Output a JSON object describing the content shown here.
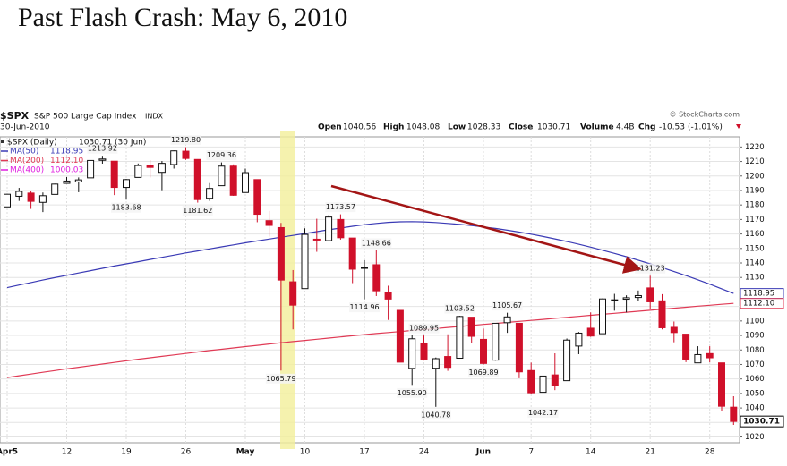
{
  "chart_data": {
    "type": "candlestick",
    "title": "Past Flash Crash: May 6, 2010",
    "symbol": "$SPX",
    "name": "S&P 500 Large Cap Index",
    "exchange": "INDX",
    "date": "30-Jun-2010",
    "source": "© StockCharts.com",
    "labels": {
      "open": "Open",
      "high": "High",
      "low": "Low",
      "close": "Close",
      "volume": "Volume",
      "chg": "Chg"
    },
    "volume": "4.4B",
    "change": -10.53,
    "change_pct": "(-1.01%)",
    "legend_title": "$SPX (Daily)",
    "legend_date": "(30 Jun)",
    "categories": [
      "Apr5",
      null,
      null,
      null,
      null,
      "12",
      null,
      null,
      null,
      null,
      "19",
      null,
      null,
      null,
      null,
      "26",
      null,
      null,
      null,
      null,
      "May",
      null,
      null,
      null,
      null,
      "10",
      null,
      null,
      null,
      null,
      "17",
      null,
      null,
      null,
      null,
      "24",
      null,
      null,
      null,
      null,
      "Jun",
      null,
      null,
      null,
      "7",
      null,
      null,
      null,
      null,
      "14",
      null,
      null,
      null,
      null,
      "21",
      null,
      null,
      null,
      null,
      "28",
      null,
      null
    ],
    "open": [
      1178.7,
      1186.0,
      1188.2,
      1181.8,
      1187.3,
      1194.9,
      1195.9,
      1198.7,
      1210.8,
      1210.2,
      1192.1,
      1199.0,
      1207.2,
      1202.5,
      1207.9,
      1217.1,
      1211.4,
      1184.6,
      1193.3,
      1206.8,
      1188.6,
      1197.5,
      1169.2,
      1164.4,
      1127.0,
      1122.3,
      1156.4,
      1155.4,
      1170.0,
      1157.2,
      1136.5,
      1138.8,
      1119.6,
      1107.3,
      1067.3,
      1084.8,
      1067.4,
      1075.5,
      1074.3,
      1102.6,
      1087.3,
      1073.0,
      1098.8,
      1098.4,
      1065.8,
      1050.8,
      1062.8,
      1058.8,
      1082.7,
      1095.0,
      1091.2,
      1114.0,
      1115.0,
      1116.2,
      1122.8,
      1113.9,
      1095.6,
      1090.9,
      1071.1,
      1077.5,
      1071.1,
      1040.56
    ],
    "high": [
      1187.7,
      1191.8,
      1189.6,
      1188.6,
      1194.7,
      1199.2,
      1199.0,
      1210.7,
      1213.92,
      1210.2,
      1197.9,
      1208.6,
      1210.99,
      1210.3,
      1217.6,
      1219.8,
      1211.6,
      1195.1,
      1209.36,
      1207.99,
      1205.1,
      1197.5,
      1175.9,
      1167.6,
      1135.1,
      1163.9,
      1170.5,
      1172.9,
      1173.57,
      1157.2,
      1141.9,
      1148.66,
      1124.3,
      1107.3,
      1090.2,
      1089.95,
      1074.8,
      1090.8,
      1103.52,
      1102.6,
      1094.8,
      1098.6,
      1105.67,
      1098.4,
      1071.3,
      1063.2,
      1077.7,
      1087.9,
      1092.4,
      1105.9,
      1115.6,
      1118.7,
      1117.7,
      1121.0,
      1131.23,
      1118.5,
      1099.6,
      1090.9,
      1082.6,
      1082.6,
      1071.1,
      1048.08
    ],
    "low": [
      1178.7,
      1182.8,
      1177.3,
      1175.1,
      1187.2,
      1194.7,
      1188.8,
      1198.7,
      1208.5,
      1186.8,
      1183.68,
      1199.0,
      1198.9,
      1190.2,
      1205.1,
      1211.1,
      1181.62,
      1182.8,
      1193.3,
      1186.3,
      1188.6,
      1168.1,
      1158.2,
      1065.79,
      1094.2,
      1122.3,
      1147.7,
      1155.4,
      1156.1,
      1126.1,
      1114.96,
      1117.2,
      1100.7,
      1071.6,
      1055.9,
      1072.7,
      1040.78,
      1065.6,
      1074.3,
      1084.8,
      1069.89,
      1072.6,
      1091.8,
      1060.5,
      1049.8,
      1042.17,
      1052.3,
      1058.8,
      1077.1,
      1089.0,
      1091.2,
      1107.1,
      1105.9,
      1113.9,
      1108.2,
      1094.2,
      1085.3,
      1071.6,
      1071.1,
      1071.5,
      1038.1,
      1028.33
    ],
    "close": [
      1187.4,
      1189.4,
      1182.5,
      1186.4,
      1194.4,
      1196.5,
      1197.3,
      1210.7,
      1211.7,
      1192.1,
      1197.5,
      1207.2,
      1205.9,
      1208.7,
      1217.3,
      1212.1,
      1183.7,
      1191.4,
      1206.8,
      1186.7,
      1202.3,
      1173.6,
      1165.9,
      1128.2,
      1110.9,
      1159.7,
      1155.8,
      1171.7,
      1157.4,
      1135.7,
      1136.9,
      1120.8,
      1115.1,
      1071.6,
      1087.7,
      1073.7,
      1074.0,
      1068.0,
      1103.1,
      1089.4,
      1070.7,
      1098.4,
      1102.8,
      1064.9,
      1050.5,
      1062.0,
      1055.7,
      1086.8,
      1091.6,
      1089.6,
      1115.2,
      1114.6,
      1116.0,
      1117.5,
      1113.2,
      1095.3,
      1092.0,
      1073.7,
      1076.8,
      1074.6,
      1041.2,
      1030.71
    ],
    "up_color": "#ffffff",
    "down_color": "#d0102a",
    "series": [
      {
        "name": "MA(50)",
        "color": "#3a3ab5",
        "legend_value": 1118.95,
        "values": [
          1123.0,
          1124.8,
          1126.5,
          1128.2,
          1129.9,
          1131.5,
          1133.1,
          1134.7,
          1136.3,
          1137.9,
          1139.4,
          1140.9,
          1142.4,
          1143.9,
          1145.4,
          1146.9,
          1148.3,
          1149.7,
          1151.1,
          1152.5,
          1153.9,
          1155.2,
          1156.5,
          1157.8,
          1159.0,
          1160.3,
          1161.6,
          1162.9,
          1164.1,
          1165.3,
          1166.4,
          1167.3,
          1168.0,
          1168.4,
          1168.5,
          1168.3,
          1167.9,
          1167.3,
          1166.6,
          1165.8,
          1164.8,
          1163.8,
          1162.6,
          1161.3,
          1159.9,
          1158.3,
          1156.6,
          1154.8,
          1152.9,
          1150.9,
          1148.8,
          1146.6,
          1144.3,
          1141.9,
          1139.4,
          1136.8,
          1134.1,
          1131.3,
          1128.4,
          1125.4,
          1122.2,
          1118.95
        ]
      },
      {
        "name": "MA(200)",
        "color": "#e03a55",
        "legend_value": {
          "value": 1112.1,
          "label": "1112.10"
        },
        "values": [
          1061.0,
          1062.2,
          1063.4,
          1064.6,
          1065.8,
          1067.0,
          1068.1,
          1069.2,
          1070.3,
          1071.4,
          1072.5,
          1073.6,
          1074.6,
          1075.6,
          1076.6,
          1077.6,
          1078.6,
          1079.6,
          1080.5,
          1081.4,
          1082.3,
          1083.2,
          1084.1,
          1085.0,
          1085.8,
          1086.6,
          1087.4,
          1088.2,
          1089.0,
          1089.8,
          1090.6,
          1091.3,
          1092.0,
          1092.7,
          1093.4,
          1094.1,
          1094.8,
          1095.5,
          1096.2,
          1096.9,
          1097.6,
          1098.3,
          1099.0,
          1099.7,
          1100.4,
          1101.1,
          1101.8,
          1102.5,
          1103.2,
          1103.9,
          1104.6,
          1105.3,
          1106.0,
          1106.7,
          1107.4,
          1108.1,
          1108.8,
          1109.5,
          1110.2,
          1110.8,
          1111.5,
          1112.1
        ]
      },
      {
        "name": "MA(400)",
        "color": "#e020e0",
        "legend_value": 1000.03
      }
    ],
    "annotations": [
      1213.92,
      {
        "value": 1219.8,
        "label": "1219.80"
      },
      1209.36,
      1183.68,
      1181.62,
      1065.79,
      1173.57,
      1148.66,
      1114.96,
      1089.95,
      {
        "value": 1055.9,
        "label": "1055.90"
      },
      1040.78,
      1103.52,
      1069.89,
      1105.67,
      1042.17,
      1131.23
    ],
    "ylim": [
      1016,
      1227
    ],
    "yticks": [
      1020,
      1030,
      1040,
      1050,
      1060,
      1070,
      1080,
      1090,
      1100,
      1110,
      1120,
      1130,
      1140,
      1150,
      1160,
      1170,
      1180,
      1190,
      1200,
      1210,
      1220
    ],
    "grid": true
  }
}
